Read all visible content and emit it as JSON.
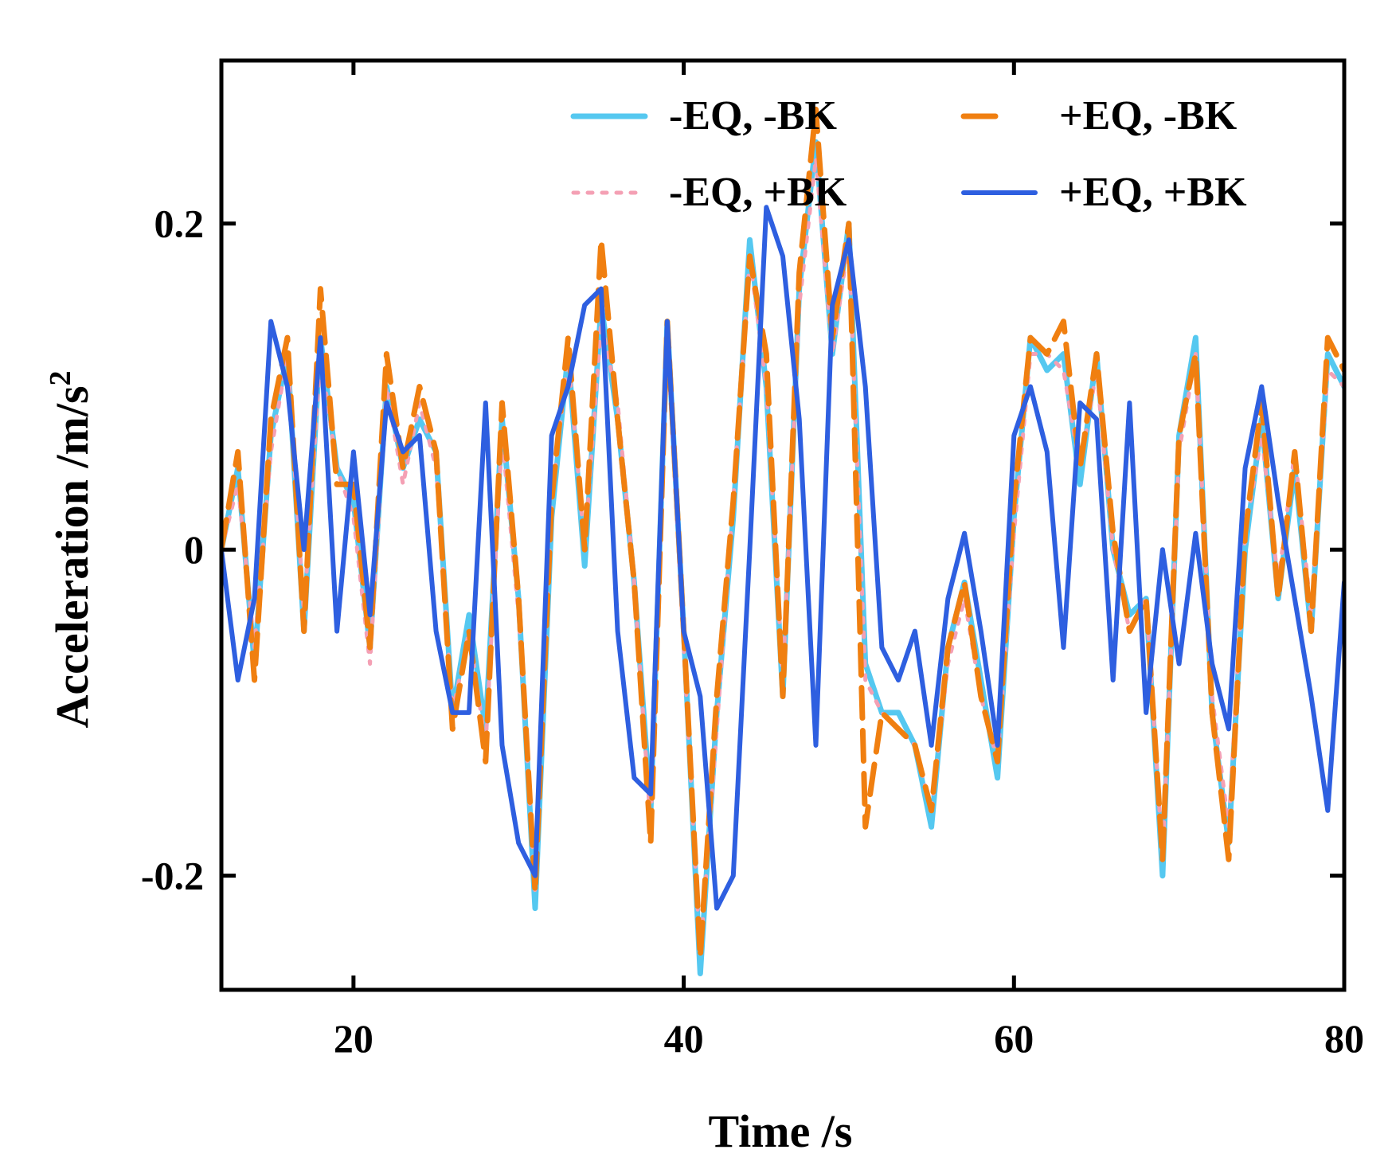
{
  "chart_data": {
    "type": "line",
    "title": "",
    "xlabel": "Time /s",
    "ylabel": "Acceleration /m/s",
    "ylabel_superscript": "2",
    "xlim": [
      12,
      80
    ],
    "ylim": [
      -0.27,
      0.3
    ],
    "x_ticks": [
      20,
      40,
      60,
      80
    ],
    "x_tick_labels": [
      "20",
      "40",
      "60",
      "80"
    ],
    "y_ticks": [
      -0.2,
      0,
      0.2
    ],
    "y_tick_labels": [
      "-0.2",
      "0",
      "0.2"
    ],
    "grid": false,
    "legend_position": "top-right",
    "series": [
      {
        "name": "-EQ, -BK",
        "color": "#55C8F0",
        "style": "solid",
        "x": [
          12,
          13,
          14,
          15,
          16,
          17,
          18,
          19,
          20,
          21,
          22,
          23,
          24,
          25,
          26,
          27,
          28,
          29,
          30,
          31,
          32,
          33,
          34,
          35,
          36,
          37,
          38,
          39,
          40,
          41,
          42,
          43,
          44,
          45,
          46,
          47,
          48,
          49,
          50,
          51,
          52,
          53,
          54,
          55,
          56,
          57,
          58,
          59,
          60,
          61,
          62,
          63,
          64,
          65,
          66,
          67,
          68,
          69,
          70,
          71,
          72,
          73,
          74,
          75,
          76,
          77,
          78,
          79,
          80
        ],
        "values": [
          0.0,
          0.05,
          -0.07,
          0.07,
          0.12,
          -0.05,
          0.13,
          0.05,
          0.03,
          -0.06,
          0.1,
          0.05,
          0.08,
          0.06,
          -0.1,
          -0.04,
          -0.11,
          0.08,
          -0.03,
          -0.22,
          0.02,
          0.12,
          -0.01,
          0.15,
          0.08,
          -0.02,
          -0.16,
          0.14,
          -0.05,
          -0.26,
          -0.1,
          0.02,
          0.19,
          0.1,
          -0.09,
          0.16,
          0.25,
          0.12,
          0.2,
          -0.07,
          -0.1,
          -0.1,
          -0.12,
          -0.17,
          -0.06,
          -0.02,
          -0.08,
          -0.14,
          0.02,
          0.13,
          0.11,
          0.12,
          0.04,
          0.12,
          0.0,
          -0.04,
          -0.03,
          -0.2,
          0.07,
          0.13,
          -0.1,
          -0.18,
          0.0,
          0.08,
          -0.03,
          0.05,
          -0.05,
          0.12,
          0.1
        ]
      },
      {
        "name": "-EQ, +BK",
        "color": "#F4A0B4",
        "style": "dotted",
        "x": [
          12,
          13,
          14,
          15,
          16,
          17,
          18,
          19,
          20,
          21,
          22,
          23,
          24,
          25,
          26,
          27,
          28,
          29,
          30,
          31,
          32,
          33,
          34,
          35,
          36,
          37,
          38,
          39,
          40,
          41,
          42,
          43,
          44,
          45,
          46,
          47,
          48,
          49,
          50,
          51,
          52,
          53,
          54,
          55,
          56,
          57,
          58,
          59,
          60,
          61,
          62,
          63,
          64,
          65,
          66,
          67,
          68,
          69,
          70,
          71,
          72,
          73,
          74,
          75,
          76,
          77,
          78,
          79,
          80
        ],
        "values": [
          0.0,
          0.04,
          -0.06,
          0.06,
          0.12,
          -0.04,
          0.12,
          0.05,
          0.02,
          -0.07,
          0.1,
          0.04,
          0.09,
          0.05,
          -0.1,
          -0.05,
          -0.12,
          0.07,
          -0.04,
          -0.21,
          0.03,
          0.12,
          0.0,
          0.14,
          0.09,
          -0.02,
          -0.17,
          0.13,
          -0.06,
          -0.25,
          -0.11,
          0.03,
          0.18,
          0.1,
          -0.08,
          0.15,
          0.24,
          0.12,
          0.19,
          -0.08,
          -0.1,
          -0.11,
          -0.12,
          -0.16,
          -0.07,
          -0.03,
          -0.09,
          -0.13,
          0.01,
          0.12,
          0.12,
          0.11,
          0.05,
          0.11,
          0.0,
          -0.05,
          -0.03,
          -0.19,
          0.06,
          0.12,
          -0.09,
          -0.17,
          0.01,
          0.07,
          -0.02,
          0.06,
          -0.04,
          0.11,
          0.1
        ]
      },
      {
        "name": "+EQ, -BK",
        "color": "#F07F10",
        "style": "dashed",
        "x": [
          12,
          13,
          14,
          15,
          16,
          17,
          18,
          19,
          20,
          21,
          22,
          23,
          24,
          25,
          26,
          27,
          28,
          29,
          30,
          31,
          32,
          33,
          34,
          35,
          36,
          37,
          38,
          39,
          40,
          41,
          42,
          43,
          44,
          45,
          46,
          47,
          48,
          49,
          50,
          51,
          52,
          53,
          54,
          55,
          56,
          57,
          58,
          59,
          60,
          61,
          62,
          63,
          64,
          65,
          66,
          67,
          68,
          69,
          70,
          71,
          72,
          73,
          74,
          75,
          76,
          77,
          78,
          79,
          80
        ],
        "values": [
          0.0,
          0.06,
          -0.08,
          0.08,
          0.13,
          -0.05,
          0.16,
          0.04,
          0.04,
          -0.06,
          0.12,
          0.05,
          0.1,
          0.06,
          -0.11,
          -0.05,
          -0.13,
          0.09,
          -0.03,
          -0.21,
          0.03,
          0.13,
          0.0,
          0.19,
          0.08,
          -0.02,
          -0.18,
          0.14,
          -0.05,
          -0.25,
          -0.09,
          0.03,
          0.18,
          0.12,
          -0.09,
          0.17,
          0.27,
          0.13,
          0.2,
          -0.17,
          -0.1,
          -0.11,
          -0.12,
          -0.16,
          -0.06,
          -0.02,
          -0.09,
          -0.13,
          0.03,
          0.13,
          0.12,
          0.14,
          0.05,
          0.12,
          0.01,
          -0.05,
          -0.03,
          -0.19,
          0.07,
          0.12,
          -0.1,
          -0.19,
          0.01,
          0.09,
          -0.03,
          0.06,
          -0.05,
          0.13,
          0.11
        ]
      },
      {
        "name": "+EQ, +BK",
        "color": "#2E5FE0",
        "style": "solid",
        "x": [
          12,
          13,
          14,
          15,
          16,
          17,
          18,
          19,
          20,
          21,
          22,
          23,
          24,
          25,
          26,
          27,
          28,
          29,
          30,
          31,
          32,
          33,
          34,
          35,
          36,
          37,
          38,
          39,
          40,
          41,
          42,
          43,
          44,
          45,
          46,
          47,
          48,
          49,
          50,
          51,
          52,
          53,
          54,
          55,
          56,
          57,
          58,
          59,
          60,
          61,
          62,
          63,
          64,
          65,
          66,
          67,
          68,
          69,
          70,
          71,
          72,
          73,
          74,
          75,
          76,
          77,
          78,
          79,
          80
        ],
        "values": [
          0.0,
          -0.08,
          -0.03,
          0.14,
          0.1,
          0.0,
          0.13,
          -0.05,
          0.06,
          -0.04,
          0.09,
          0.06,
          0.07,
          -0.05,
          -0.1,
          -0.1,
          0.09,
          -0.12,
          -0.18,
          -0.2,
          0.07,
          0.1,
          0.15,
          0.16,
          -0.05,
          -0.14,
          -0.15,
          0.14,
          -0.05,
          -0.09,
          -0.22,
          -0.2,
          0.0,
          0.21,
          0.18,
          0.08,
          -0.12,
          0.15,
          0.19,
          0.1,
          -0.06,
          -0.08,
          -0.05,
          -0.12,
          -0.03,
          0.01,
          -0.05,
          -0.12,
          0.07,
          0.1,
          0.06,
          -0.06,
          0.09,
          0.08,
          -0.08,
          0.09,
          -0.1,
          0.0,
          -0.07,
          0.01,
          -0.07,
          -0.11,
          0.05,
          0.1,
          0.03,
          -0.03,
          -0.09,
          -0.16,
          -0.02
        ]
      }
    ]
  }
}
